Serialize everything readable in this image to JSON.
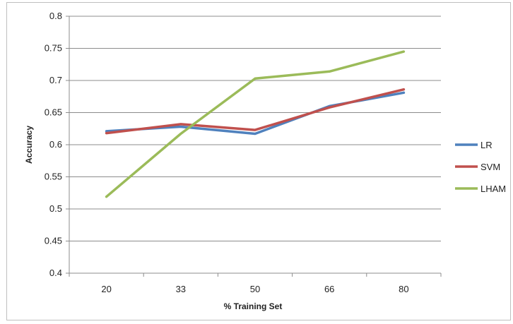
{
  "chart_data": {
    "type": "line",
    "title": "",
    "xlabel": "% Training Set",
    "ylabel": "Accuracy",
    "categories": [
      "20",
      "33",
      "50",
      "66",
      "80"
    ],
    "ylim": [
      0.4,
      0.8
    ],
    "yticks": [
      "0.4",
      "0.45",
      "0.5",
      "0.55",
      "0.6",
      "0.65",
      "0.7",
      "0.75",
      "0.8"
    ],
    "grid": true,
    "legend_position": "right",
    "series": [
      {
        "name": "LR",
        "color": "#4f81bd",
        "values": [
          0.621,
          0.628,
          0.617,
          0.66,
          0.681
        ]
      },
      {
        "name": "SVM",
        "color": "#c0504d",
        "values": [
          0.618,
          0.632,
          0.623,
          0.658,
          0.686
        ]
      },
      {
        "name": "LHAM",
        "color": "#9bbb59",
        "values": [
          0.519,
          0.617,
          0.703,
          0.714,
          0.745
        ]
      }
    ]
  }
}
